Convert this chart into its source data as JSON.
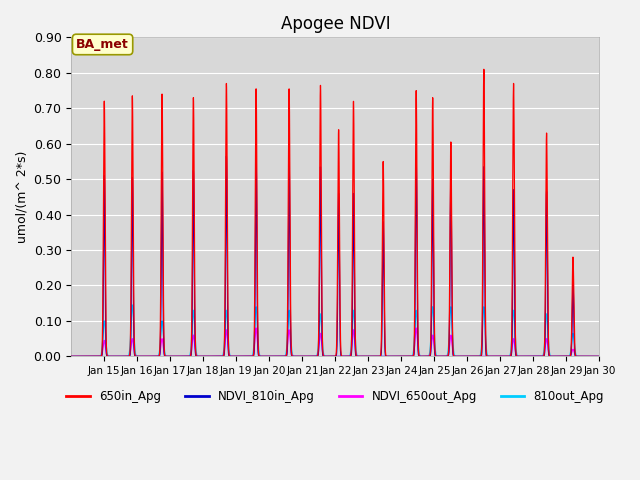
{
  "title": "Apogee NDVI",
  "ylabel": "umol/(m^ 2*s)",
  "ylim": [
    0.0,
    0.9
  ],
  "yticks": [
    0.0,
    0.1,
    0.2,
    0.3,
    0.4,
    0.5,
    0.6,
    0.7,
    0.8,
    0.9
  ],
  "xlim_start": 14,
  "xlim_end": 30,
  "xtick_labels": [
    "Jan 15",
    "Jan 16",
    "Jan 17",
    "Jan 18",
    "Jan 19",
    "Jan 20",
    "Jan 21",
    "Jan 22",
    "Jan 23",
    "Jan 24",
    "Jan 25",
    "Jan 26",
    "Jan 27",
    "Jan 28",
    "Jan 29",
    "Jan 30"
  ],
  "annotation_text": "BA_met",
  "legend_entries": [
    "650in_Apg",
    "NDVI_810in_Apg",
    "NDVI_650out_Apg",
    "810out_Apg"
  ],
  "colors": {
    "650in_Apg": "#ff0000",
    "NDVI_810in_Apg": "#0000cc",
    "NDVI_650out_Apg": "#ff00ff",
    "810out_Apg": "#00ccff"
  },
  "plot_bg_color": "#d8d8d8",
  "fig_bg_color": "#f2f2f2",
  "grid_color": "#ffffff",
  "title_fontsize": 12,
  "peaks": {
    "red": {
      "positions": [
        15.0,
        15.85,
        16.75,
        17.7,
        18.7,
        19.6,
        20.6,
        21.55,
        22.1,
        22.55,
        23.45,
        24.45,
        24.95,
        25.5,
        26.5,
        27.4,
        28.4,
        29.2
      ],
      "heights": [
        0.72,
        0.735,
        0.74,
        0.73,
        0.77,
        0.755,
        0.755,
        0.765,
        0.64,
        0.72,
        0.55,
        0.75,
        0.73,
        0.605,
        0.81,
        0.77,
        0.63,
        0.28
      ]
    },
    "blue": {
      "positions": [
        15.0,
        15.85,
        16.75,
        17.7,
        18.7,
        19.6,
        20.6,
        21.55,
        22.1,
        22.55,
        23.45,
        24.45,
        24.95,
        25.5,
        26.5,
        27.4,
        28.4,
        29.2
      ],
      "heights": [
        0.51,
        0.505,
        0.52,
        0.525,
        0.565,
        0.56,
        0.555,
        0.535,
        0.46,
        0.46,
        0.38,
        0.555,
        0.5,
        0.505,
        0.535,
        0.47,
        0.465,
        0.21
      ]
    },
    "magenta": {
      "positions": [
        15.0,
        15.85,
        16.75,
        17.7,
        18.7,
        19.6,
        20.6,
        21.55,
        22.55,
        24.45,
        24.95,
        25.5,
        27.4,
        28.4,
        29.2
      ],
      "heights": [
        0.045,
        0.05,
        0.05,
        0.06,
        0.075,
        0.08,
        0.075,
        0.065,
        0.075,
        0.08,
        0.06,
        0.06,
        0.05,
        0.05,
        0.02
      ]
    },
    "cyan": {
      "positions": [
        15.0,
        15.85,
        16.75,
        17.7,
        18.7,
        19.6,
        20.6,
        21.55,
        22.55,
        24.45,
        24.95,
        25.5,
        26.5,
        27.4,
        28.4,
        29.2
      ],
      "heights": [
        0.1,
        0.145,
        0.1,
        0.13,
        0.13,
        0.14,
        0.13,
        0.12,
        0.13,
        0.13,
        0.14,
        0.14,
        0.14,
        0.13,
        0.12,
        0.065
      ]
    }
  }
}
